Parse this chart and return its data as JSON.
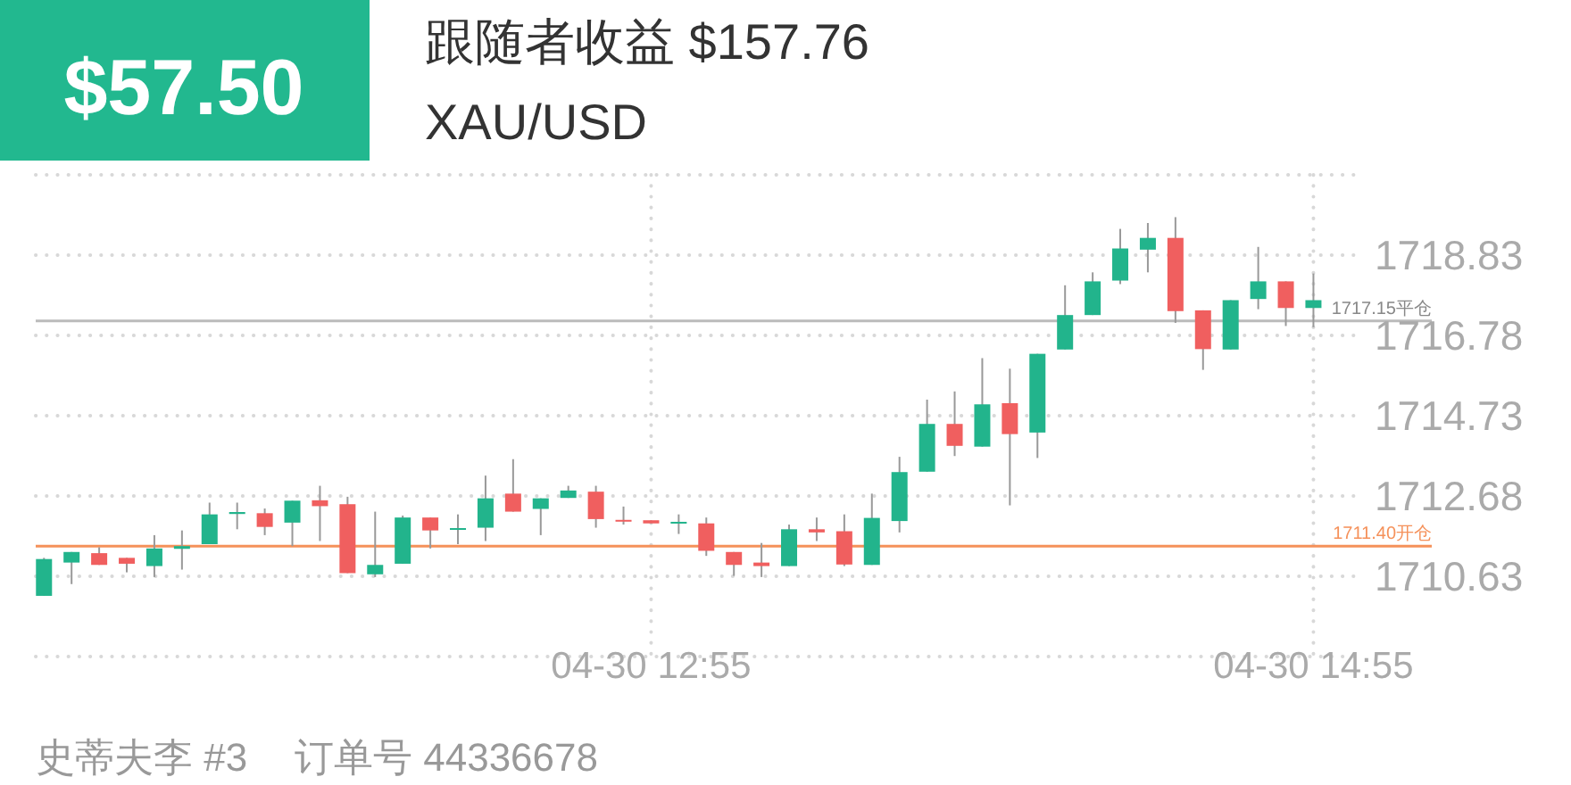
{
  "chart_data": {
    "type": "candlestick",
    "title": "跟随者收益 $157.76",
    "subtitle": "XAU/USD",
    "annotations": [
      "$57.50",
      "史蒂夫李 #3",
      "订单号 44336678"
    ],
    "categories": [
      null,
      null,
      null,
      null,
      null,
      null,
      null,
      null,
      null,
      null,
      null,
      null,
      null,
      null,
      null,
      null,
      null,
      null,
      null,
      null,
      null,
      null,
      "04-30 12:55",
      null,
      null,
      null,
      null,
      null,
      null,
      null,
      null,
      null,
      null,
      null,
      null,
      null,
      null,
      null,
      null,
      null,
      null,
      null,
      null,
      null,
      null,
      null,
      "04-30 14:55"
    ],
    "ohlc": [
      [
        1710.13,
        1711.1,
        1710.13,
        1711.07
      ],
      [
        1710.98,
        1711.25,
        1710.43,
        1711.25
      ],
      [
        1711.22,
        1711.37,
        1710.92,
        1710.92
      ],
      [
        1711.1,
        1711.1,
        1710.73,
        1710.95
      ],
      [
        1710.89,
        1711.68,
        1710.61,
        1711.34
      ],
      [
        1711.33,
        1711.8,
        1710.8,
        1711.4
      ],
      [
        1711.45,
        1712.51,
        1711.45,
        1712.21
      ],
      [
        1712.22,
        1712.51,
        1711.83,
        1712.27
      ],
      [
        1712.24,
        1712.36,
        1711.68,
        1711.89
      ],
      [
        1712.0,
        1712.56,
        1711.4,
        1712.56
      ],
      [
        1712.57,
        1712.94,
        1711.53,
        1712.42
      ],
      [
        1712.47,
        1712.66,
        1710.71,
        1710.71
      ],
      [
        1710.68,
        1712.28,
        1710.61,
        1710.92
      ],
      [
        1710.95,
        1712.18,
        1710.95,
        1712.13
      ],
      [
        1712.13,
        1712.13,
        1711.34,
        1711.8
      ],
      [
        1711.85,
        1712.21,
        1711.45,
        1711.86
      ],
      [
        1711.87,
        1713.2,
        1711.53,
        1712.62
      ],
      [
        1712.74,
        1713.62,
        1712.28,
        1712.28
      ],
      [
        1712.35,
        1712.62,
        1711.68,
        1712.62
      ],
      [
        1712.63,
        1712.94,
        1712.63,
        1712.82
      ],
      [
        1712.79,
        1712.94,
        1711.87,
        1712.09
      ],
      [
        1712.07,
        1712.41,
        1711.95,
        1712.06
      ],
      [
        1712.06,
        1712.06,
        1711.98,
        1711.98
      ],
      [
        1712.0,
        1712.21,
        1711.71,
        1712.02
      ],
      [
        1711.98,
        1712.13,
        1711.15,
        1711.28
      ],
      [
        1711.25,
        1711.25,
        1710.64,
        1710.92
      ],
      [
        1710.98,
        1711.48,
        1710.61,
        1710.89
      ],
      [
        1710.89,
        1711.95,
        1710.89,
        1711.83
      ],
      [
        1711.83,
        1712.13,
        1711.53,
        1711.75
      ],
      [
        1711.78,
        1712.21,
        1710.89,
        1710.93
      ],
      [
        1710.92,
        1712.74,
        1710.92,
        1712.12
      ],
      [
        1712.04,
        1713.68,
        1711.75,
        1713.29
      ],
      [
        1713.3,
        1715.14,
        1713.3,
        1714.52
      ],
      [
        1714.52,
        1715.35,
        1713.7,
        1713.96
      ],
      [
        1713.94,
        1716.2,
        1713.94,
        1715.02
      ],
      [
        1715.05,
        1715.93,
        1712.44,
        1714.26
      ],
      [
        1714.3,
        1716.31,
        1713.65,
        1716.31
      ],
      [
        1716.42,
        1718.06,
        1716.42,
        1717.3
      ],
      [
        1717.3,
        1718.39,
        1717.3,
        1718.16
      ],
      [
        1718.18,
        1719.5,
        1718.09,
        1719.0
      ],
      [
        1718.97,
        1719.65,
        1718.39,
        1719.27
      ],
      [
        1719.27,
        1719.8,
        1717.1,
        1717.4
      ],
      [
        1717.42,
        1717.42,
        1715.9,
        1716.43
      ],
      [
        1716.42,
        1717.68,
        1716.42,
        1717.68
      ],
      [
        1717.71,
        1719.04,
        1717.45,
        1718.16
      ],
      [
        1718.16,
        1718.16,
        1717.02,
        1717.48
      ],
      [
        1717.48,
        1718.36,
        1716.99,
        1717.68
      ]
    ],
    "colors": [
      "#22b48c",
      "#22b48c",
      "#f05f5f",
      "#f05f5f",
      "#22b48c",
      "#22b48c",
      "#22b48c",
      "#22b48c",
      "#f05f5f",
      "#22b48c",
      "#f05f5f",
      "#f05f5f",
      "#22b48c",
      "#22b48c",
      "#f05f5f",
      "#22b48c",
      "#22b48c",
      "#f05f5f",
      "#22b48c",
      "#22b48c",
      "#f05f5f",
      "#f05f5f",
      "#f05f5f",
      "#22b48c",
      "#f05f5f",
      "#f05f5f",
      "#f05f5f",
      "#22b48c",
      "#f05f5f",
      "#f05f5f",
      "#22b48c",
      "#22b48c",
      "#22b48c",
      "#f05f5f",
      "#22b48c",
      "#f05f5f",
      "#22b48c",
      "#22b48c",
      "#22b48c",
      "#22b48c",
      "#22b48c",
      "#f05f5f",
      "#f05f5f",
      "#22b48c",
      "#22b48c",
      "#f05f5f",
      "#22b48c"
    ],
    "ylim": [
      1708.58,
      1720.88
    ],
    "yticks": [
      {
        "value": 1708.58,
        "label": null
      },
      1710.63,
      1712.68,
      1714.73,
      1716.78,
      1718.83,
      {
        "value": 1720.88,
        "label": null
      }
    ],
    "grid": true,
    "ref_lines": [
      {
        "axis": "y",
        "value": 1717.15,
        "label": "1717.15平仓",
        "color": "#bbbbbb"
      },
      {
        "axis": "y",
        "value": 1711.4,
        "label": "1711.40开仓",
        "color": "#f5915a"
      }
    ]
  }
}
